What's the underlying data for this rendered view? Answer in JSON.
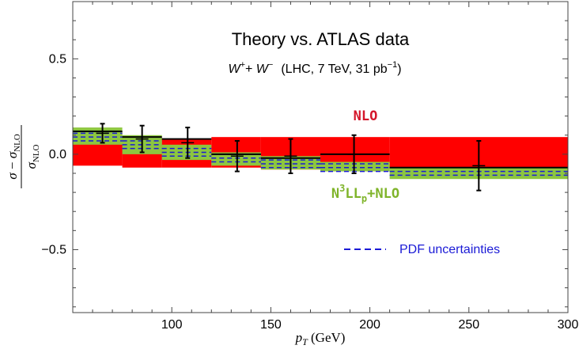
{
  "chart_data": {
    "type": "step-band",
    "title": "Theory vs. ATLAS data",
    "subtitle": {
      "process_w1": "W",
      "process_w1_sup": "+",
      "process_plus": "+ ",
      "process_w2": "W",
      "process_w2_sup": "−",
      "conditions_pre": "(LHC, 7 TeV, 31 pb",
      "conditions_sup": "−1",
      "conditions_post": ")"
    },
    "xlabel": {
      "sym": "p",
      "sub": "T",
      "unit": " (GeV)"
    },
    "ylabel": {
      "num_sigma": "σ",
      "num_minus": " − ",
      "num_sigma2": "σ",
      "num_sub": "NLO",
      "den_sigma": "σ",
      "den_sub": "NLO"
    },
    "xlim": [
      50,
      300
    ],
    "ylim": [
      -0.83,
      0.8
    ],
    "xticks": [
      100,
      150,
      200,
      250,
      300
    ],
    "xtick_labels": [
      "100",
      "150",
      "200",
      "250",
      "300"
    ],
    "yticks": [
      -0.5,
      0.0,
      0.5
    ],
    "ytick_labels": [
      "−0.5",
      "0.0",
      "0.5"
    ],
    "bins": [
      [
        50,
        75
      ],
      [
        75,
        95
      ],
      [
        95,
        120
      ],
      [
        120,
        145
      ],
      [
        145,
        175
      ],
      [
        175,
        210
      ],
      [
        210,
        300
      ]
    ],
    "nlo_band": {
      "name": "NLO",
      "color": "#ff0000",
      "lower": [
        -0.06,
        -0.07,
        -0.07,
        -0.07,
        -0.08,
        -0.07,
        -0.07
      ],
      "upper": [
        0.12,
        0.09,
        0.08,
        0.09,
        0.09,
        0.09,
        0.09
      ]
    },
    "n3ll_band": {
      "name_base": "N",
      "name_sup": "3",
      "name_mid": "LL",
      "name_sub": "p",
      "name_end": "+NLO",
      "color": "#8dc63f",
      "lower": [
        0.05,
        0.0,
        -0.03,
        -0.06,
        -0.08,
        -0.09,
        -0.13
      ],
      "upper": [
        0.14,
        0.1,
        0.05,
        0.01,
        -0.01,
        -0.04,
        -0.07
      ]
    },
    "pdf_uncertainty": {
      "name": "PDF uncertainties",
      "color": "#1a1ad6",
      "center": [
        0.09,
        0.05,
        0.01,
        -0.02,
        -0.05,
        -0.07,
        -0.09
      ],
      "lower": [
        0.07,
        0.03,
        -0.01,
        -0.04,
        -0.07,
        -0.09,
        -0.11
      ],
      "upper": [
        0.11,
        0.07,
        0.03,
        0.0,
        -0.03,
        -0.05,
        -0.07
      ]
    },
    "data_line": {
      "color": "#000000",
      "values": [
        0.12,
        0.09,
        0.08,
        0.0,
        -0.02,
        0.0,
        -0.07
      ]
    },
    "data_points": [
      {
        "x": 65,
        "y": 0.11,
        "err": 0.05
      },
      {
        "x": 85,
        "y": 0.08,
        "err": 0.07
      },
      {
        "x": 108,
        "y": 0.06,
        "err": 0.08
      },
      {
        "x": 133,
        "y": -0.01,
        "err": 0.08
      },
      {
        "x": 160,
        "y": -0.01,
        "err": 0.09
      },
      {
        "x": 192,
        "y": 0.0,
        "err": 0.1
      },
      {
        "x": 255,
        "y": -0.06,
        "err": 0.13
      }
    ],
    "legend_position": "bottom-right",
    "grid": false
  }
}
